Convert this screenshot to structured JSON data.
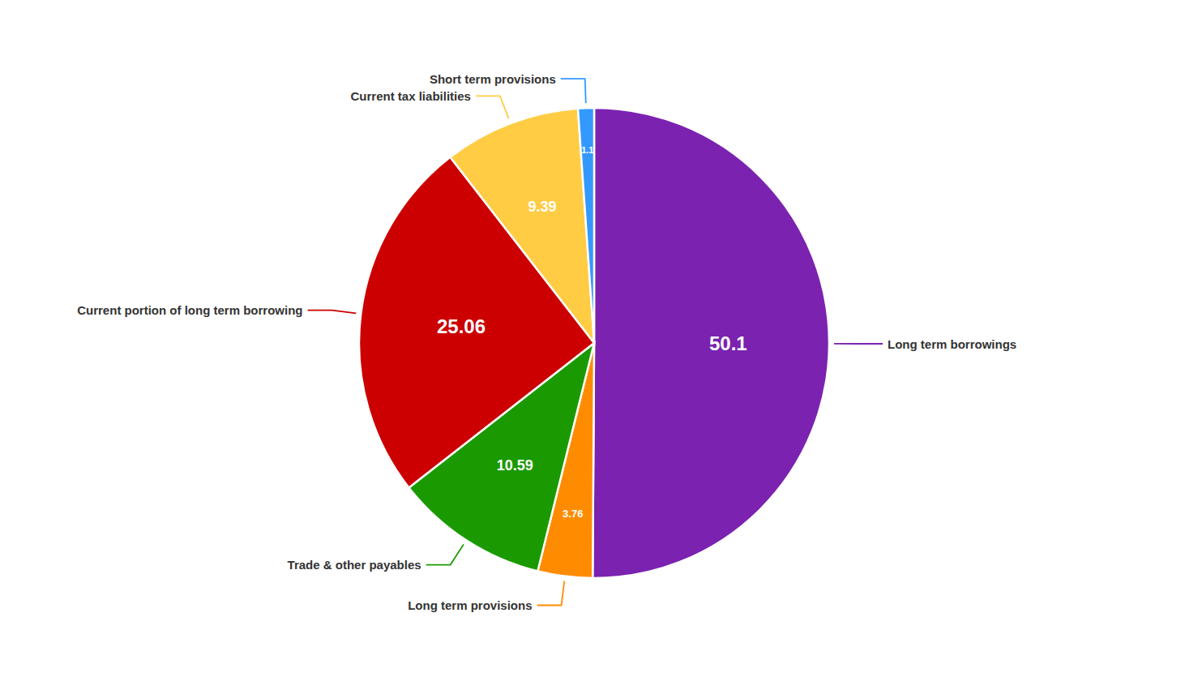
{
  "chart_data": {
    "type": "pie",
    "categories": [
      "Long term borrowings",
      "Long term provisions",
      "Trade & other payables",
      "Current portion of long term borrowing",
      "Current tax liabilities",
      "Short term provisions"
    ],
    "values": [
      50.1,
      3.76,
      10.59,
      25.06,
      9.39,
      1.1
    ],
    "colors": [
      "#7b22b0",
      "#ff8c00",
      "#1a9a00",
      "#cc0000",
      "#ffcc44",
      "#3399ff"
    ],
    "data_labels": true
  }
}
